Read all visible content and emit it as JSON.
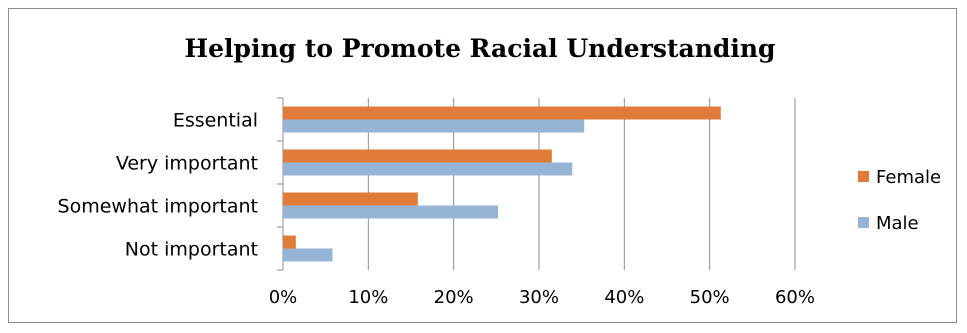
{
  "chart_data": {
    "type": "bar",
    "orientation": "horizontal",
    "title": "Helping to Promote Racial Understanding",
    "categories": [
      "Essential",
      "Very important",
      "Somewhat important",
      "Not important"
    ],
    "series": [
      {
        "name": "Female",
        "color": "#E07B39",
        "values": [
          51.3,
          31.5,
          15.8,
          1.5
        ]
      },
      {
        "name": "Male",
        "color": "#95B4D6",
        "values": [
          35.3,
          33.9,
          25.2,
          5.8
        ]
      }
    ],
    "xlim": [
      0,
      60
    ],
    "x_ticks": [
      "0%",
      "10%",
      "20%",
      "30%",
      "40%",
      "50%",
      "60%"
    ],
    "grid": true,
    "legend_position": "right"
  }
}
